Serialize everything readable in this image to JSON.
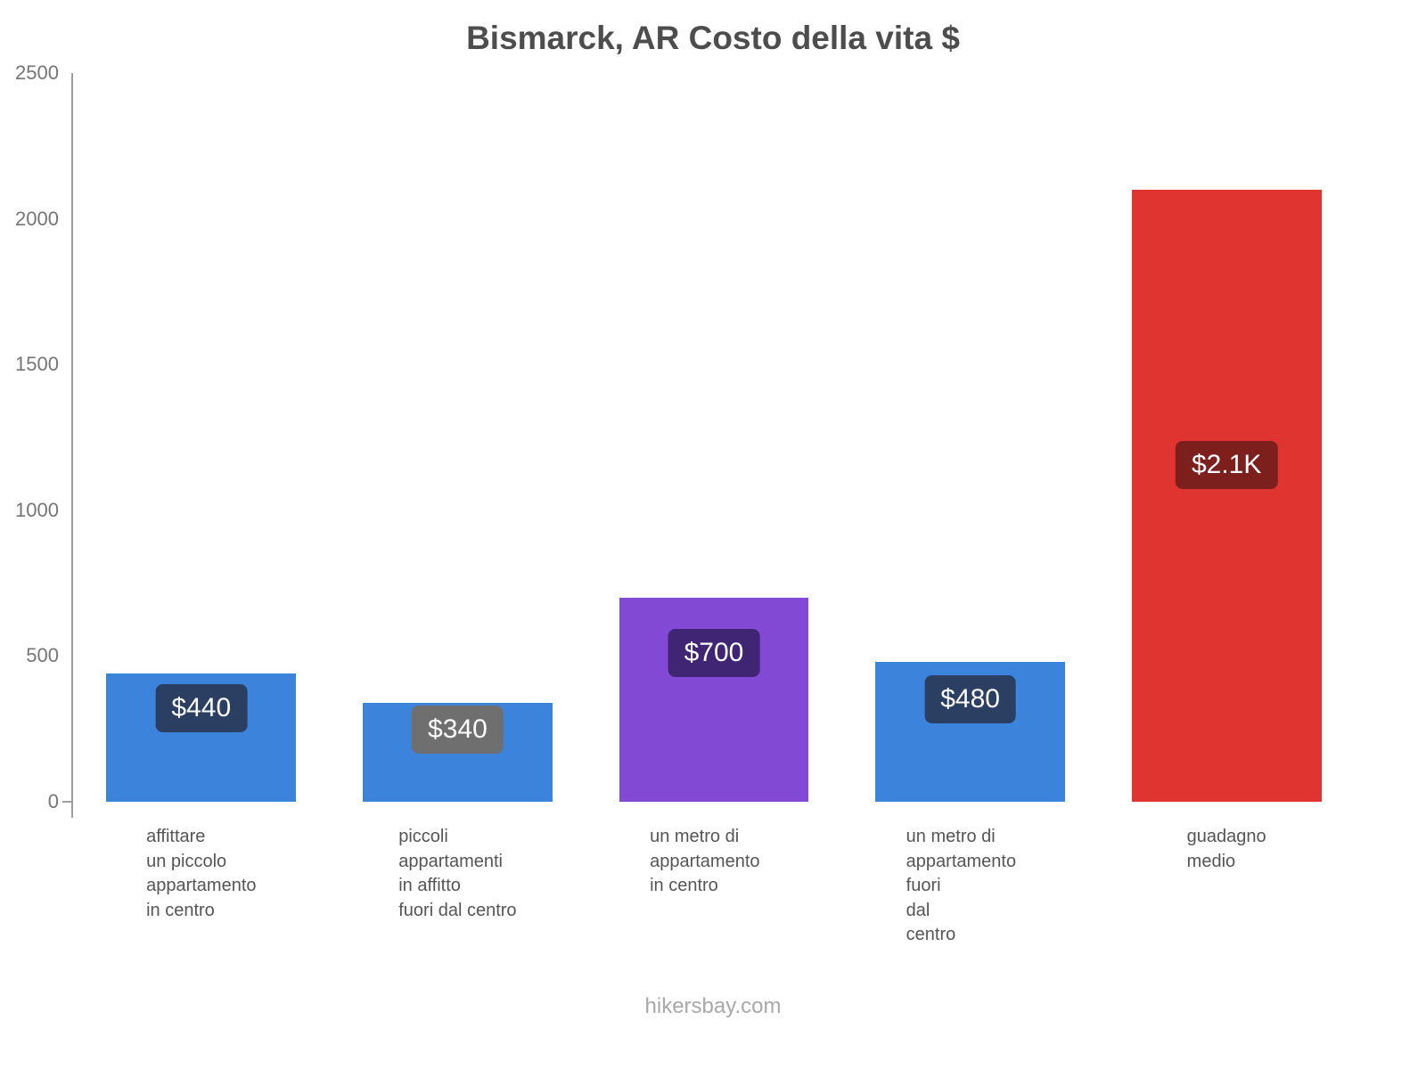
{
  "title": "Bismarck, AR Costo della vita $",
  "footer": {
    "text": "hikersbay.com"
  },
  "chart_data": {
    "type": "bar",
    "title": "Bismarck, AR Costo della vita $",
    "xlabel": "",
    "ylabel": "",
    "ylim": [
      0,
      2500
    ],
    "y_ticks": [
      0,
      500,
      1000,
      1500,
      2000,
      2500
    ],
    "grid": false,
    "legend": "none",
    "categories": [
      "affittare un piccolo appartamento in centro",
      "piccoli appartamenti in affitto fuori dal centro",
      "un metro di appartamento in centro",
      "un metro di appartamento fuori dal centro",
      "guadagno medio"
    ],
    "values": [
      440,
      340,
      700,
      480,
      2100
    ],
    "items": [
      {
        "label_lines": [
          "affittare",
          "un piccolo",
          "appartamento",
          "in centro"
        ],
        "value": 440,
        "display_value": "$440",
        "bar_color": "#3c83dc",
        "badge_color": "#2b3f63"
      },
      {
        "label_lines": [
          "piccoli",
          "appartamenti",
          "in affitto",
          "fuori dal centro"
        ],
        "value": 340,
        "display_value": "$340",
        "bar_color": "#3c83dc",
        "badge_color": "#6f6f6f"
      },
      {
        "label_lines": [
          "un metro di appartamento",
          "in centro"
        ],
        "value": 700,
        "display_value": "$700",
        "bar_color": "#8249d4",
        "badge_color": "#3f2573"
      },
      {
        "label_lines": [
          "un metro di appartamento",
          "fuori",
          "dal",
          "centro"
        ],
        "value": 480,
        "display_value": "$480",
        "bar_color": "#3c83dc",
        "badge_color": "#2b3f63"
      },
      {
        "label_lines": [
          "guadagno",
          "medio"
        ],
        "value": 2100,
        "display_value": "$2.1K",
        "bar_color": "#e03431",
        "badge_color": "#7d201d"
      }
    ]
  }
}
